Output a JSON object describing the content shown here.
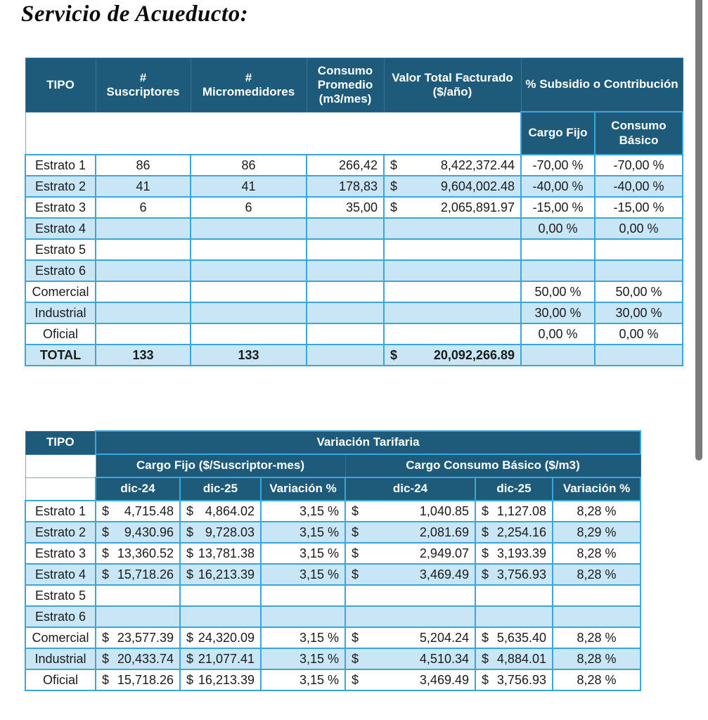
{
  "title": "Servicio de Acueducto:",
  "colors": {
    "header_bg": "#1E5B7A",
    "row_alt": "#C9E6F7",
    "border": "#3BA6DB",
    "text": "#1B1B1B",
    "header_text": "#FFFFFF",
    "scrollbar": "#7B7B7B"
  },
  "table1": {
    "currency": "$",
    "headers": {
      "tipo": "TIPO",
      "suscriptores_sign": "#",
      "suscriptores": "Suscriptores",
      "micromedidores_sign": "#",
      "micromedidores": "Micromedidores",
      "consumo": "Consumo Promedio (m3/mes)",
      "valor": "Valor Total Facturado ($/año)",
      "subsidio": "% Subsidio o Contribución",
      "cargo_fijo": "Cargo Fijo",
      "consumo_basico": "Consumo Básico"
    },
    "rows": [
      {
        "tipo": "Estrato 1",
        "suscriptores": "86",
        "micromedidores": "86",
        "consumo": "266,42",
        "valor": "8,422,372.44",
        "cargo_fijo": "-70,00 %",
        "consumo_basico": "-70,00 %",
        "bold": false
      },
      {
        "tipo": "Estrato 2",
        "suscriptores": "41",
        "micromedidores": "41",
        "consumo": "178,83",
        "valor": "9,604,002.48",
        "cargo_fijo": "-40,00 %",
        "consumo_basico": "-40,00 %",
        "bold": false
      },
      {
        "tipo": "Estrato 3",
        "suscriptores": "6",
        "micromedidores": "6",
        "consumo": "35,00",
        "valor": "2,065,891.97",
        "cargo_fijo": "-15,00 %",
        "consumo_basico": "-15,00 %",
        "bold": false
      },
      {
        "tipo": "Estrato 4",
        "suscriptores": "",
        "micromedidores": "",
        "consumo": "",
        "valor": "",
        "cargo_fijo": "0,00 %",
        "consumo_basico": "0,00 %",
        "bold": false
      },
      {
        "tipo": "Estrato 5",
        "suscriptores": "",
        "micromedidores": "",
        "consumo": "",
        "valor": "",
        "cargo_fijo": "",
        "consumo_basico": "",
        "bold": false
      },
      {
        "tipo": "Estrato 6",
        "suscriptores": "",
        "micromedidores": "",
        "consumo": "",
        "valor": "",
        "cargo_fijo": "",
        "consumo_basico": "",
        "bold": false
      },
      {
        "tipo": "Comercial",
        "suscriptores": "",
        "micromedidores": "",
        "consumo": "",
        "valor": "",
        "cargo_fijo": "50,00 %",
        "consumo_basico": "50,00 %",
        "bold": false
      },
      {
        "tipo": "Industrial",
        "suscriptores": "",
        "micromedidores": "",
        "consumo": "",
        "valor": "",
        "cargo_fijo": "30,00 %",
        "consumo_basico": "30,00 %",
        "bold": false
      },
      {
        "tipo": "Oficial",
        "suscriptores": "",
        "micromedidores": "",
        "consumo": "",
        "valor": "",
        "cargo_fijo": "0,00 %",
        "consumo_basico": "0,00 %",
        "bold": false
      },
      {
        "tipo": "TOTAL",
        "suscriptores": "133",
        "micromedidores": "133",
        "consumo": "",
        "valor": "20,092,266.89",
        "cargo_fijo": "",
        "consumo_basico": "",
        "bold": true
      }
    ]
  },
  "table2": {
    "currency": "$",
    "headers": {
      "tipo": "TIPO",
      "variacion_tarifaria": "Variación Tarifaria",
      "cargo_fijo_group": "Cargo Fijo ($/Suscriptor-mes)",
      "consumo_basico_group": "Cargo Consumo Básico ($/m3)",
      "dic24": "dic-24",
      "dic25": "dic-25",
      "variacion": "Variación %"
    },
    "rows": [
      {
        "tipo": "Estrato 1",
        "cf_dic24": "4,715.48",
        "cf_dic25": "4,864.02",
        "cf_var": "3,15 %",
        "ccb_dic24": "1,040.85",
        "ccb_dic25": "1,127.08",
        "ccb_var": "8,28 %"
      },
      {
        "tipo": "Estrato 2",
        "cf_dic24": "9,430.96",
        "cf_dic25": "9,728.03",
        "cf_var": "3,15 %",
        "ccb_dic24": "2,081.69",
        "ccb_dic25": "2,254.16",
        "ccb_var": "8,29 %"
      },
      {
        "tipo": "Estrato 3",
        "cf_dic24": "13,360.52",
        "cf_dic25": "13,781.38",
        "cf_var": "3,15 %",
        "ccb_dic24": "2,949.07",
        "ccb_dic25": "3,193.39",
        "ccb_var": "8,28 %"
      },
      {
        "tipo": "Estrato 4",
        "cf_dic24": "15,718.26",
        "cf_dic25": "16,213.39",
        "cf_var": "3,15 %",
        "ccb_dic24": "3,469.49",
        "ccb_dic25": "3,756.93",
        "ccb_var": "8,28 %"
      },
      {
        "tipo": "Estrato 5",
        "cf_dic24": "",
        "cf_dic25": "",
        "cf_var": "",
        "ccb_dic24": "",
        "ccb_dic25": "",
        "ccb_var": ""
      },
      {
        "tipo": "Estrato 6",
        "cf_dic24": "",
        "cf_dic25": "",
        "cf_var": "",
        "ccb_dic24": "",
        "ccb_dic25": "",
        "ccb_var": ""
      },
      {
        "tipo": "Comercial",
        "cf_dic24": "23,577.39",
        "cf_dic25": "24,320.09",
        "cf_var": "3,15 %",
        "ccb_dic24": "5,204.24",
        "ccb_dic25": "5,635.40",
        "ccb_var": "8,28 %"
      },
      {
        "tipo": "Industrial",
        "cf_dic24": "20,433.74",
        "cf_dic25": "21,077.41",
        "cf_var": "3,15 %",
        "ccb_dic24": "4,510.34",
        "ccb_dic25": "4,884.01",
        "ccb_var": "8,28 %"
      },
      {
        "tipo": "Oficial",
        "cf_dic24": "15,718.26",
        "cf_dic25": "16,213.39",
        "cf_var": "3,15 %",
        "ccb_dic24": "3,469.49",
        "ccb_dic25": "3,756.93",
        "ccb_var": "8,28 %"
      }
    ]
  }
}
